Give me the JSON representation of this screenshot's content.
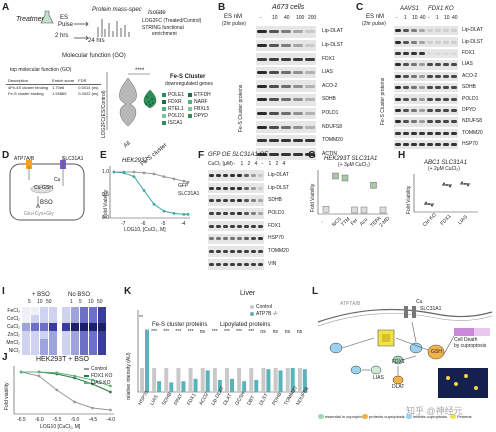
{
  "panels": {
    "A": {
      "letter": "A",
      "treatment": "Treatment",
      "es_pulse": "ES",
      "es_pulse2": "Pulse",
      "hrs2": "2 hrs",
      "hrs24": "24 hrs",
      "hrs24b": "hrs",
      "protein_mass_spec": "Protein mass-spec",
      "isolate": "Isolate",
      "log2fc": "LOG2FC (Treated/Control)",
      "string": "STRING functional",
      "enrichment": "enrichment",
      "molecular_function": "Molecular function (GO)",
      "top_mf": "top molecular function (GO)",
      "table_headers": [
        "Description",
        "Enrich score",
        "FDR"
      ],
      "table_rows": [
        [
          "4Fe-4S cluster binding",
          "1.70e6",
          "0.0014 (ns)"
        ],
        [
          "Fe-S cluster binding",
          "1.59865",
          "0.0022 (ns)"
        ]
      ],
      "sig": "****",
      "ylabel": "LOG2FC(ES/Control)",
      "x_all": "All",
      "x_fes": "Fe-S cluster",
      "legend_title": "Fe-S Cluster",
      "legend_title2": "downregulated genes",
      "legend_items": [
        "POLE1",
        "FDXR",
        "RTEL1",
        "POLD1",
        "ISCA1",
        "ETFDH",
        "NARF",
        "FBXL5",
        "DPYD"
      ]
    },
    "B": {
      "letter": "B",
      "es_nm": "ES nM",
      "pulse": "(2hr pulse)",
      "cell": "A673 cells",
      "doses": [
        "-",
        "10",
        "40",
        "100",
        "200"
      ],
      "fes_label": "Fe-S Cluster proteins",
      "proteins": [
        "Lip-DLAT",
        "Lip-DLST",
        "FDX1",
        "LIAS",
        "ACO-2",
        "SDHB",
        "POLD1",
        "NDUFS8",
        "TOMM20",
        "ACTIN"
      ]
    },
    "C": {
      "letter": "C",
      "es_nm": "ES nM",
      "pulse": "(2hr pulse)",
      "group1": "AAVS1",
      "group2": "FDX1 KO",
      "doses": [
        "-",
        "1",
        "10",
        "40",
        "-",
        "1",
        "10",
        "40"
      ],
      "fes_label": "Fe-S Cluster proteins",
      "proteins": [
        "Lip-DLAT",
        "Lip-DLST",
        "FDX1",
        "LIAS",
        "ACO-2",
        "SDHB",
        "POLD1",
        "DPYD",
        "NDUFS8",
        "TOMM20",
        "HSP70"
      ]
    },
    "D": {
      "letter": "D",
      "atp": "ATP7A/B",
      "slc": "SLC31A1",
      "cu": "Cu",
      "cugsh": "Cu-GSH",
      "bso": "BSO",
      "gly": "Glu+Cys+Gly"
    },
    "E": {
      "letter": "E",
      "cell": "HEK293T",
      "legend": [
        "GFP",
        "SLC31A1"
      ],
      "ylabel": "Fold Viability",
      "xlabel": "LOG10, [CuCl₂, M]",
      "xticks": [
        "-7",
        "-6",
        "-5",
        "-4"
      ],
      "yticks": [
        "0.0",
        "0.5",
        "1.0"
      ]
    },
    "F": {
      "letter": "F",
      "title": "GFP OE SLC31A1 OE",
      "cucl2": "CuCl₂ (μM)",
      "doses": [
        "-",
        "1",
        "2",
        "4",
        "-",
        "1",
        "2",
        "4"
      ],
      "proteins": [
        "Lip-DLAT",
        "Lip-DLST",
        "SDHB",
        "POLD1",
        "FDX1",
        "HSP70",
        "TOMM20",
        "VIN"
      ]
    },
    "G": {
      "letter": "G",
      "title": "HEK293T SLC31A1",
      "subtitle": "(+ 3μM CuCl₂)",
      "ylabel": "Fold Viability",
      "xcats": [
        "-",
        "NCS",
        "TTM",
        "Fer",
        "Aco",
        "TEPA",
        "2-MD"
      ]
    },
    "H": {
      "letter": "H",
      "title": "ABC1 SLC31A1",
      "subtitle": "(+ 2μM CuCl₂)",
      "ylabel": "Fold Viability",
      "xcats": [
        "Ctrl KO",
        "FDX1",
        "LIAS"
      ]
    },
    "I": {
      "letter": "I",
      "plus_bso": "+ BSO",
      "no_bso": "No BSO",
      "cols": [
        "5",
        "10",
        "50"
      ],
      "cols2": [
        "1",
        "5",
        "10",
        "50"
      ],
      "rows": [
        "FeCl₃",
        "CoCl₂",
        "CuCl₂",
        "ZnCl₂",
        "MnCl₂",
        "NiCl₂"
      ]
    },
    "J": {
      "letter": "J",
      "title": "HEK293T + BSO",
      "legend": [
        "Control",
        "FDX1 KO",
        "LIAS KO"
      ],
      "ylabel": "Fold viability",
      "xlabel": "LOG10 [CuCl₂, M]",
      "xticks": [
        "-6.5",
        "-6.0",
        "-5.5",
        "-5.0",
        "-4.5",
        "-4.0"
      ]
    },
    "K": {
      "letter": "K",
      "title": "Liver",
      "legend": [
        "Control",
        "ATP7B -/-"
      ],
      "fes_label": "Fe-S cluster proteins",
      "lip_label": "Lipoylated proteins",
      "ylabel": "relative intensity (AU)",
      "proteins": [
        "HSP70",
        "LIAS",
        "SDHB",
        "PPAT",
        "FDX1",
        "ACO2",
        "Lip-DLAT",
        "DLAT",
        "GCSH",
        "DBT",
        "DLST",
        "PDHB",
        "TOMM20",
        "NDUFB8"
      ],
      "sig": [
        "**",
        "***",
        "***",
        "***",
        "***",
        "ns",
        "***",
        "***",
        "***",
        "***",
        "ns",
        "ns",
        "ns",
        "ns"
      ]
    },
    "L": {
      "letter": "L",
      "cu": "Cu",
      "slc": "SLC31A1",
      "atp": "ATP7A/B",
      "gsh": "GSH",
      "fdx1": "FDX1",
      "lias": "LIAS",
      "dlat": "DLAT",
      "cell_death": "Cell Death",
      "by_cuproptosis": "by cuproptosis",
      "legend": [
        "essential in cuproptosis",
        "protects cuproptosis",
        "inhibits cuproptosis",
        "Proteins"
      ]
    }
  },
  "watermark": "知乎 @神经元"
}
